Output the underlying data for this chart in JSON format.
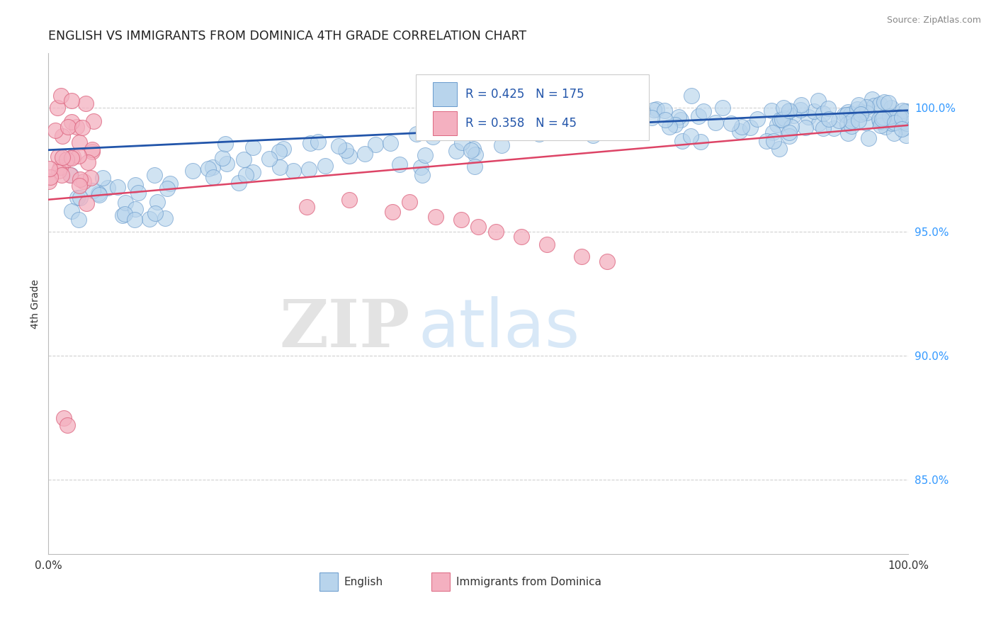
{
  "title": "ENGLISH VS IMMIGRANTS FROM DOMINICA 4TH GRADE CORRELATION CHART",
  "source": "Source: ZipAtlas.com",
  "ylabel": "4th Grade",
  "watermark_zip": "ZIP",
  "watermark_atlas": "atlas",
  "xlim": [
    0.0,
    1.0
  ],
  "ylim": [
    0.82,
    1.022
  ],
  "yticks": [
    0.85,
    0.9,
    0.95,
    1.0
  ],
  "ytick_labels": [
    "85.0%",
    "90.0%",
    "95.0%",
    "100.0%"
  ],
  "english_R": 0.425,
  "english_N": 175,
  "dominica_R": 0.358,
  "dominica_N": 45,
  "english_color": "#b8d4ec",
  "english_edge_color": "#6699cc",
  "dominica_color": "#f4b0c0",
  "dominica_edge_color": "#dd6680",
  "trend_color_english": "#2255aa",
  "trend_color_dominica": "#dd4466",
  "background_color": "#ffffff",
  "grid_color": "#cccccc",
  "title_color": "#222222",
  "legend_text_color": "#222222",
  "axis_label_color": "#3399ff",
  "source_color": "#888888"
}
